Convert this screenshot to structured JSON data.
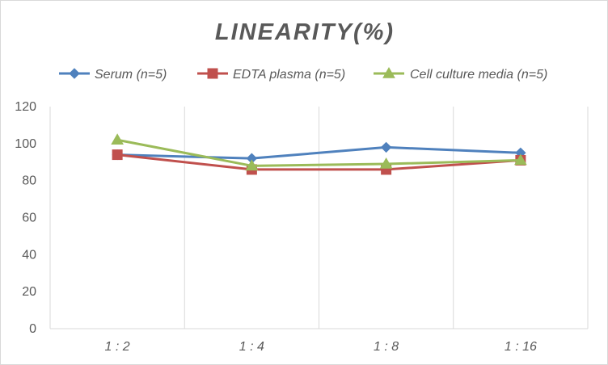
{
  "chart_data": {
    "type": "line",
    "title": "LINEARITY(%)",
    "xlabel": "",
    "ylabel": "",
    "categories": [
      "1:2",
      "1:4",
      "1:8",
      "1:16"
    ],
    "ylim": [
      0,
      120
    ],
    "yticks": [
      0,
      20,
      40,
      60,
      80,
      100,
      120
    ],
    "grid": "vertical",
    "legend_position": "top",
    "series": [
      {
        "name": "Serum (n=5)",
        "values": [
          94,
          92,
          98,
          95
        ],
        "color": "#4f81bd",
        "marker": "diamond"
      },
      {
        "name": "EDTA plasma (n=5)",
        "values": [
          94,
          86,
          86,
          91
        ],
        "color": "#c0504d",
        "marker": "square"
      },
      {
        "name": "Cell culture media (n=5)",
        "values": [
          102,
          88,
          89,
          91
        ],
        "color": "#9bbb59",
        "marker": "triangle"
      }
    ]
  }
}
